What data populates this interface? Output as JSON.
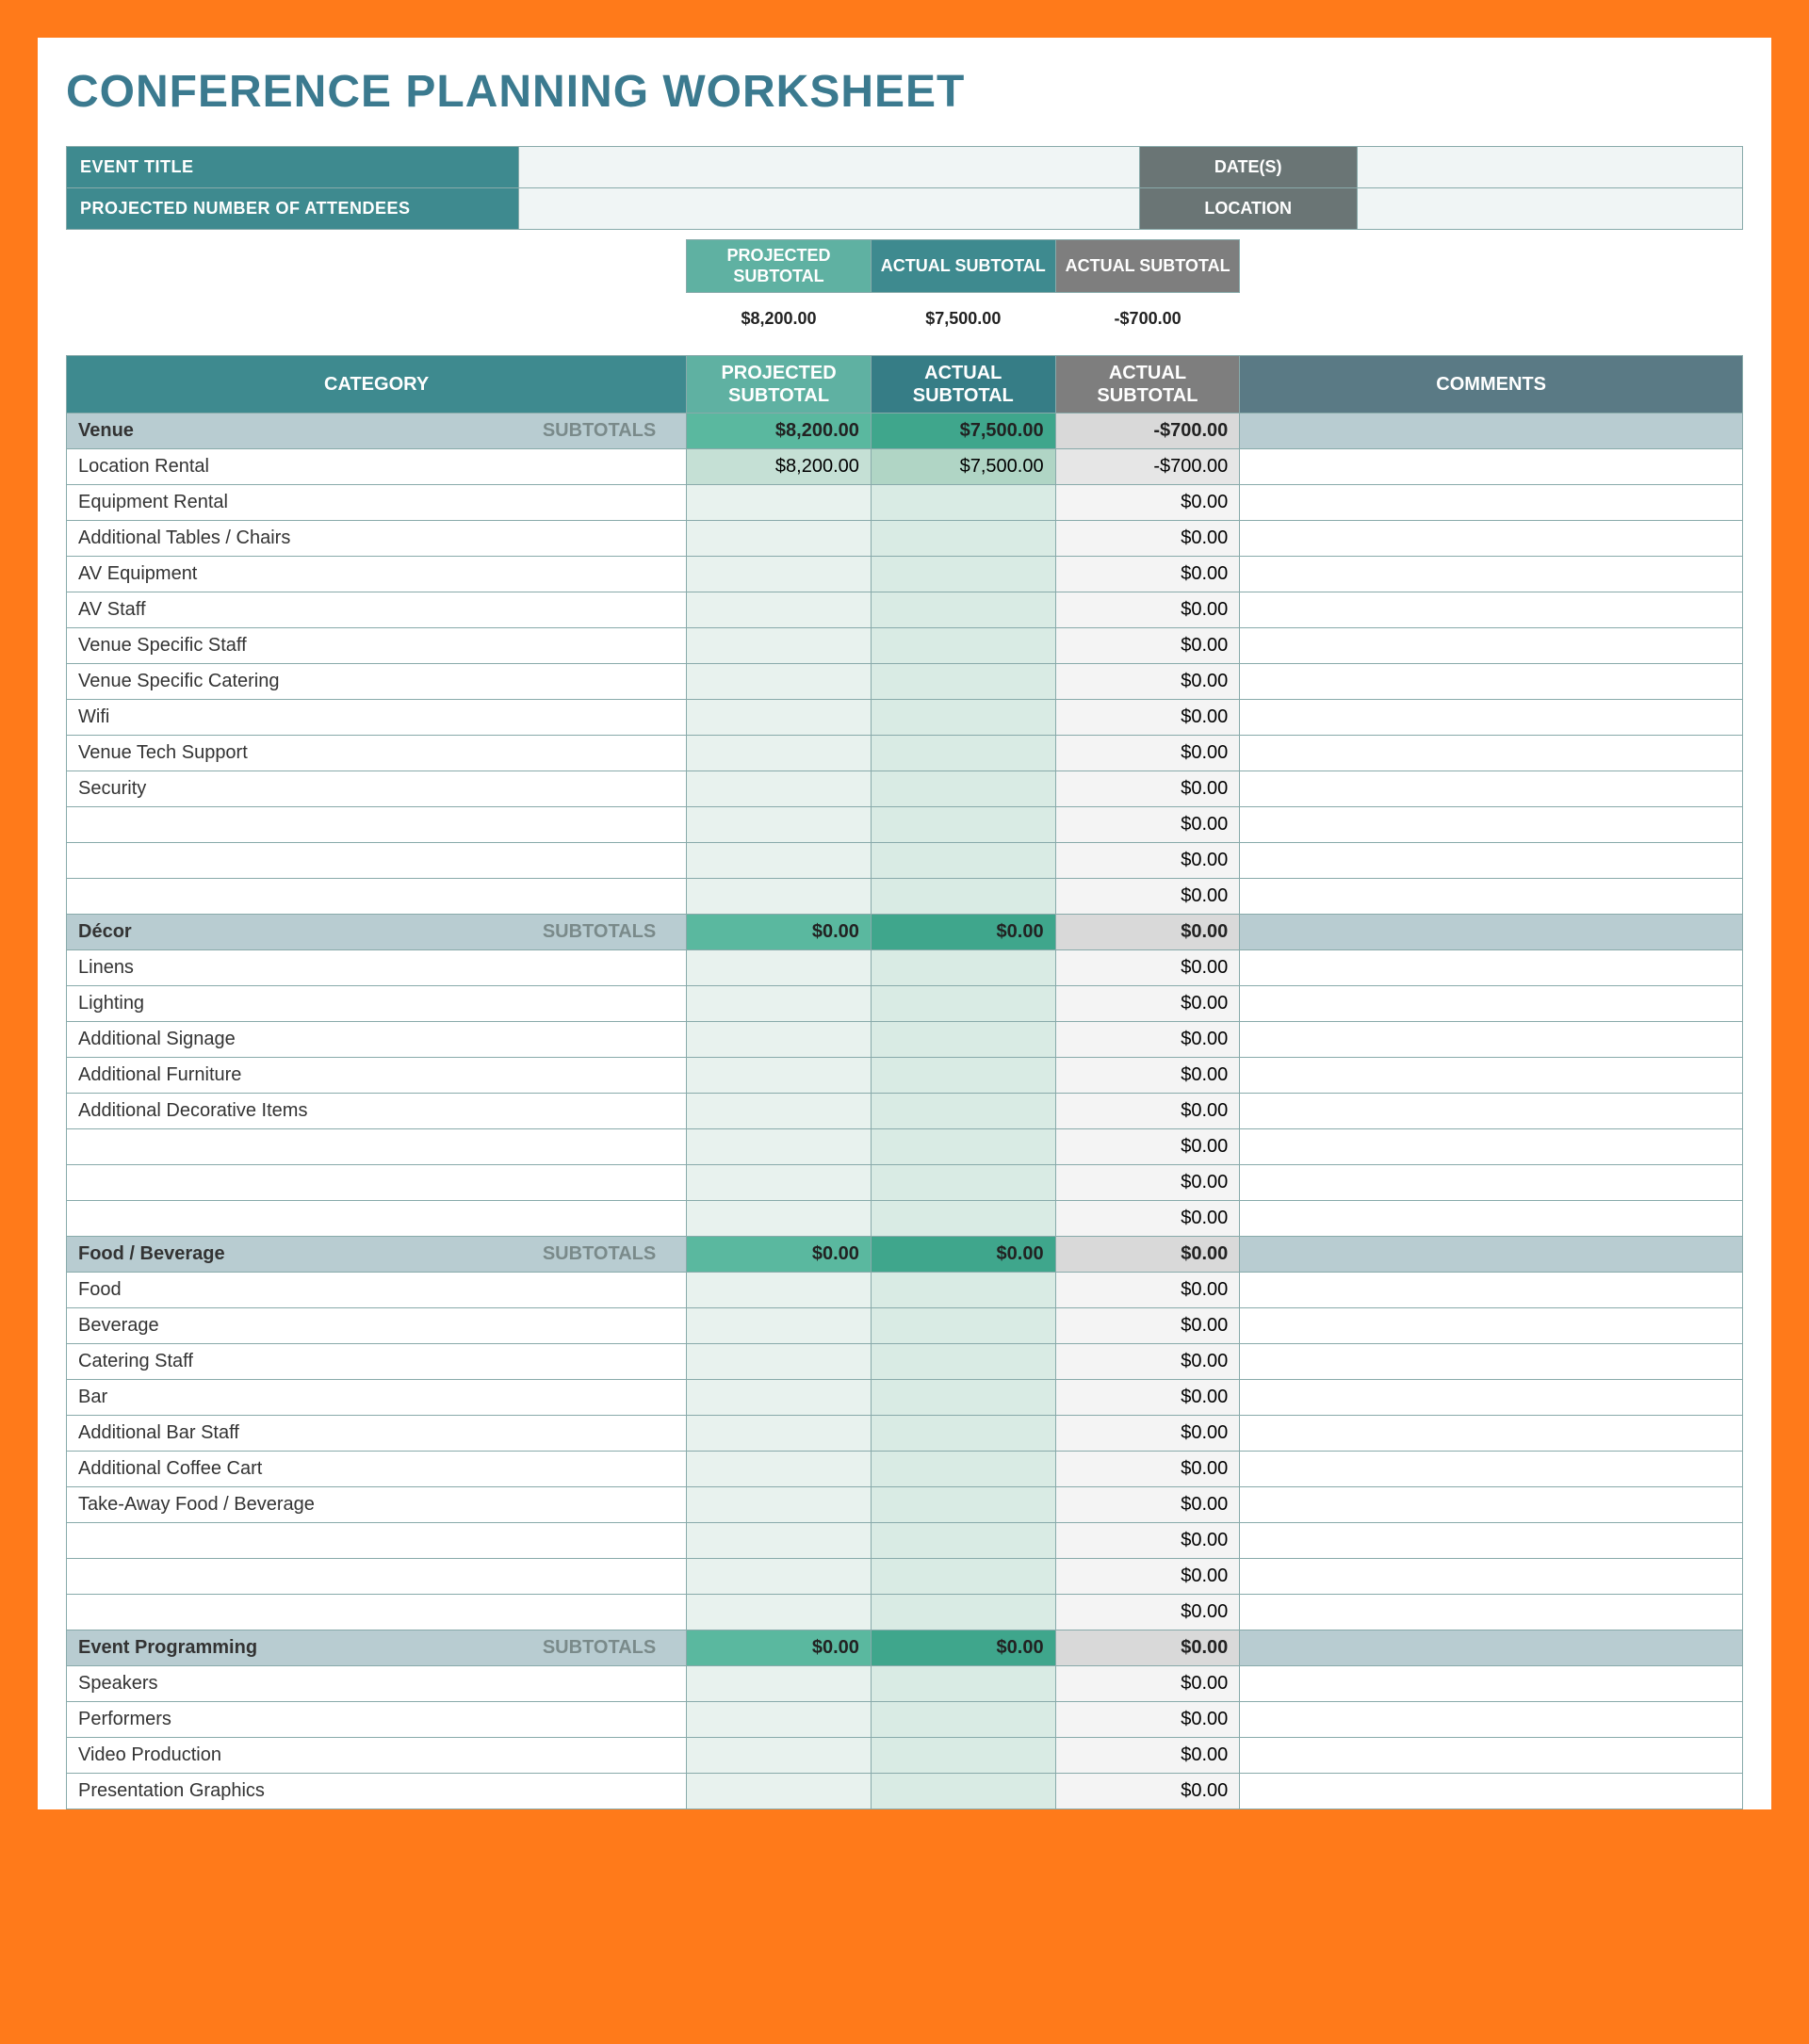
{
  "title": "CONFERENCE PLANNING WORKSHEET",
  "colors": {
    "page_border": "#ff7a1a",
    "sheet_bg": "#ffffff",
    "title_color": "#3b7a8f",
    "teal_label": "#3e8a8f",
    "gray_label": "#6a7575",
    "teal_mid": "#5fb1a2",
    "teal_dark": "#3e8a8f",
    "gray_hdr": "#7e7e7e",
    "slate_hdr": "#5a7a85",
    "section_bg": "#b8ccd1",
    "section_proj": "#5ab89f",
    "section_act": "#3fa68c",
    "section_diff": "#d9d9d9",
    "cell_proj": "#e8f2ee",
    "cell_act": "#d9ebe4",
    "cell_diff": "#f4f4f4",
    "border": "#88aaaa"
  },
  "event_info": {
    "title_label": "EVENT TITLE",
    "title_value": "",
    "dates_label": "DATE(S)",
    "dates_value": "",
    "attendees_label": "PROJECTED NUMBER OF ATTENDEES",
    "attendees_value": "",
    "location_label": "LOCATION",
    "location_value": ""
  },
  "summary": {
    "projected_label": "PROJECTED SUBTOTAL",
    "actual_label": "ACTUAL SUBTOTAL",
    "diff_label": "ACTUAL SUBTOTAL",
    "projected_value": "$8,200.00",
    "actual_value": "$7,500.00",
    "diff_value": "-$700.00"
  },
  "columns": {
    "category": "CATEGORY",
    "projected": "PROJECTED SUBTOTAL",
    "actual": "ACTUAL SUBTOTAL",
    "diff": "ACTUAL SUBTOTAL",
    "comments": "COMMENTS",
    "subtotals": "SUBTOTALS"
  },
  "sections": [
    {
      "name": "Venue",
      "projected": "$8,200.00",
      "actual": "$7,500.00",
      "diff": "-$700.00",
      "shaded_first": true,
      "items": [
        {
          "name": "Location Rental",
          "projected": "$8,200.00",
          "actual": "$7,500.00",
          "diff": "-$700.00"
        },
        {
          "name": "Equipment Rental",
          "projected": "",
          "actual": "",
          "diff": "$0.00"
        },
        {
          "name": "Additional Tables / Chairs",
          "projected": "",
          "actual": "",
          "diff": "$0.00"
        },
        {
          "name": "AV Equipment",
          "projected": "",
          "actual": "",
          "diff": "$0.00"
        },
        {
          "name": "AV Staff",
          "projected": "",
          "actual": "",
          "diff": "$0.00"
        },
        {
          "name": "Venue Specific Staff",
          "projected": "",
          "actual": "",
          "diff": "$0.00"
        },
        {
          "name": "Venue Specific Catering",
          "projected": "",
          "actual": "",
          "diff": "$0.00"
        },
        {
          "name": "Wifi",
          "projected": "",
          "actual": "",
          "diff": "$0.00"
        },
        {
          "name": "Venue Tech Support",
          "projected": "",
          "actual": "",
          "diff": "$0.00"
        },
        {
          "name": "Security",
          "projected": "",
          "actual": "",
          "diff": "$0.00"
        },
        {
          "name": "",
          "projected": "",
          "actual": "",
          "diff": "$0.00"
        },
        {
          "name": "",
          "projected": "",
          "actual": "",
          "diff": "$0.00"
        },
        {
          "name": "",
          "projected": "",
          "actual": "",
          "diff": "$0.00"
        }
      ]
    },
    {
      "name": "Décor",
      "projected": "$0.00",
      "actual": "$0.00",
      "diff": "$0.00",
      "items": [
        {
          "name": "Linens",
          "projected": "",
          "actual": "",
          "diff": "$0.00"
        },
        {
          "name": "Lighting",
          "projected": "",
          "actual": "",
          "diff": "$0.00"
        },
        {
          "name": "Additional Signage",
          "projected": "",
          "actual": "",
          "diff": "$0.00"
        },
        {
          "name": "Additional Furniture",
          "projected": "",
          "actual": "",
          "diff": "$0.00"
        },
        {
          "name": "Additional Decorative Items",
          "projected": "",
          "actual": "",
          "diff": "$0.00"
        },
        {
          "name": "",
          "projected": "",
          "actual": "",
          "diff": "$0.00"
        },
        {
          "name": "",
          "projected": "",
          "actual": "",
          "diff": "$0.00"
        },
        {
          "name": "",
          "projected": "",
          "actual": "",
          "diff": "$0.00"
        }
      ]
    },
    {
      "name": "Food / Beverage",
      "projected": "$0.00",
      "actual": "$0.00",
      "diff": "$0.00",
      "items": [
        {
          "name": "Food",
          "projected": "",
          "actual": "",
          "diff": "$0.00"
        },
        {
          "name": "Beverage",
          "projected": "",
          "actual": "",
          "diff": "$0.00"
        },
        {
          "name": "Catering Staff",
          "projected": "",
          "actual": "",
          "diff": "$0.00"
        },
        {
          "name": "Bar",
          "projected": "",
          "actual": "",
          "diff": "$0.00"
        },
        {
          "name": "Additional Bar Staff",
          "projected": "",
          "actual": "",
          "diff": "$0.00"
        },
        {
          "name": "Additional Coffee Cart",
          "projected": "",
          "actual": "",
          "diff": "$0.00"
        },
        {
          "name": "Take-Away Food / Beverage",
          "projected": "",
          "actual": "",
          "diff": "$0.00"
        },
        {
          "name": "",
          "projected": "",
          "actual": "",
          "diff": "$0.00"
        },
        {
          "name": "",
          "projected": "",
          "actual": "",
          "diff": "$0.00"
        },
        {
          "name": "",
          "projected": "",
          "actual": "",
          "diff": "$0.00"
        }
      ]
    },
    {
      "name": "Event Programming",
      "projected": "$0.00",
      "actual": "$0.00",
      "diff": "$0.00",
      "items": [
        {
          "name": "Speakers",
          "projected": "",
          "actual": "",
          "diff": "$0.00"
        },
        {
          "name": "Performers",
          "projected": "",
          "actual": "",
          "diff": "$0.00"
        },
        {
          "name": "Video Production",
          "projected": "",
          "actual": "",
          "diff": "$0.00"
        },
        {
          "name": "Presentation Graphics",
          "projected": "",
          "actual": "",
          "diff": "$0.00"
        }
      ]
    }
  ]
}
